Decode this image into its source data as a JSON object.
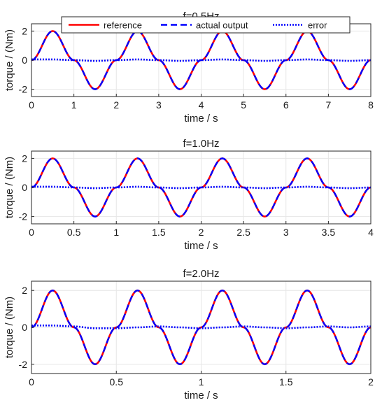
{
  "colors": {
    "reference": "#ff0000",
    "actual_output": "#0000ff",
    "error": "#0000ff",
    "grid": "#e6e6e6",
    "axes": "#262626"
  },
  "chart_data": [
    {
      "type": "line",
      "title": "f=0.5Hz",
      "xlabel": "time / s",
      "ylabel": "torque / (Nm)",
      "xlim": [
        0,
        8
      ],
      "ylim": [
        -2.5,
        2.5
      ],
      "xticks": [
        0,
        1,
        2,
        3,
        4,
        5,
        6,
        7,
        8
      ],
      "xtick_labels": [
        "0",
        "1",
        "2",
        "3",
        "4",
        "5",
        "6",
        "7",
        "8"
      ],
      "yticks": [
        2,
        0,
        -2
      ],
      "ytick_labels": [
        "2",
        "0",
        "-2"
      ],
      "grid": true,
      "legend": {
        "shown": true,
        "placement": "top",
        "orientation": "horizontal"
      },
      "series": [
        {
          "name": "reference",
          "style": "solid",
          "color": "#ff0000",
          "x": [
            0,
            0.5,
            1,
            1.5,
            2,
            2.5,
            3,
            3.5,
            4,
            4.5,
            5,
            5.5,
            6,
            6.5,
            7,
            7.5,
            8
          ],
          "y": [
            0,
            2,
            0,
            -2,
            0,
            2,
            0,
            -2,
            0,
            2,
            0,
            -2,
            0,
            2,
            0,
            -2,
            0
          ]
        },
        {
          "name": "actual output",
          "style": "dashed",
          "color": "#0000ff",
          "x": [
            0,
            0.5,
            1,
            1.5,
            2,
            2.5,
            3,
            3.5,
            4,
            4.5,
            5,
            5.5,
            6,
            6.5,
            7,
            7.5,
            8
          ],
          "y": [
            0,
            2,
            0,
            -2,
            0,
            2,
            0,
            -2,
            0,
            2,
            0,
            -2,
            0,
            2,
            0,
            -2,
            0
          ]
        },
        {
          "name": "error",
          "style": "dotted",
          "color": "#0000ff",
          "x": [
            0,
            0.5,
            1,
            1.5,
            2,
            2.5,
            3,
            3.5,
            4,
            4.5,
            5,
            5.5,
            6,
            6.5,
            7,
            7.5,
            8
          ],
          "y": [
            0.05,
            0.05,
            0,
            -0.05,
            0,
            0.05,
            0,
            -0.05,
            0,
            0.05,
            0,
            -0.05,
            0,
            0.05,
            0,
            -0.05,
            0
          ]
        }
      ]
    },
    {
      "type": "line",
      "title": "f=1.0Hz",
      "xlabel": "time / s",
      "ylabel": "torque / (Nm)",
      "xlim": [
        0,
        4
      ],
      "ylim": [
        -2.5,
        2.5
      ],
      "xticks": [
        0,
        0.5,
        1,
        1.5,
        2,
        2.5,
        3,
        3.5,
        4
      ],
      "xtick_labels": [
        "0",
        "0.5",
        "1",
        "1.5",
        "2",
        "2.5",
        "3",
        "3.5",
        "4"
      ],
      "yticks": [
        2,
        0,
        -2
      ],
      "ytick_labels": [
        "2",
        "0",
        "-2"
      ],
      "grid": true,
      "series": [
        {
          "style": "solid",
          "color": "#ff0000",
          "x": [
            0,
            0.25,
            0.5,
            0.75,
            1,
            1.25,
            1.5,
            1.75,
            2,
            2.25,
            2.5,
            2.75,
            3,
            3.25,
            3.5,
            3.75,
            4
          ],
          "y": [
            0,
            2,
            0,
            -2,
            0,
            2,
            0,
            -2,
            0,
            2,
            0,
            -2,
            0,
            2,
            0,
            -2,
            0
          ]
        },
        {
          "style": "dashed",
          "color": "#0000ff",
          "x": [
            0,
            0.25,
            0.5,
            0.75,
            1,
            1.25,
            1.5,
            1.75,
            2,
            2.25,
            2.5,
            2.75,
            3,
            3.25,
            3.5,
            3.75,
            4
          ],
          "y": [
            0,
            2,
            0,
            -2,
            0,
            2,
            0,
            -2,
            0,
            2,
            0,
            -2,
            0,
            2,
            0,
            -2,
            0
          ]
        },
        {
          "style": "dotted",
          "color": "#0000ff",
          "x": [
            0,
            0.25,
            0.5,
            0.75,
            1,
            1.25,
            1.5,
            1.75,
            2,
            2.25,
            2.5,
            2.75,
            3,
            3.25,
            3.5,
            3.75,
            4
          ],
          "y": [
            0.05,
            0.05,
            0,
            -0.05,
            0,
            0.05,
            0,
            -0.05,
            0,
            0.05,
            0,
            -0.05,
            0,
            0.05,
            0,
            -0.05,
            0
          ]
        }
      ]
    },
    {
      "type": "line",
      "title": "f=2.0Hz",
      "xlabel": "time / s",
      "ylabel": "torque / (Nm)",
      "xlim": [
        0,
        2
      ],
      "ylim": [
        -2.5,
        2.5
      ],
      "xticks": [
        0,
        0.5,
        1,
        1.5,
        2
      ],
      "xtick_labels": [
        "0",
        "0.5",
        "1",
        "1.5",
        "2"
      ],
      "yticks": [
        2,
        0,
        -2
      ],
      "ytick_labels": [
        "2",
        "0",
        "-2"
      ],
      "grid": true,
      "series": [
        {
          "style": "solid",
          "color": "#ff0000",
          "x": [
            0,
            0.125,
            0.25,
            0.375,
            0.5,
            0.625,
            0.75,
            0.875,
            1,
            1.125,
            1.25,
            1.375,
            1.5,
            1.625,
            1.75,
            1.875,
            2
          ],
          "y": [
            0,
            2,
            0,
            -2,
            0,
            2,
            0,
            -2,
            0,
            2,
            0,
            -2,
            0,
            2,
            0,
            -2,
            0
          ]
        },
        {
          "style": "dashed",
          "color": "#0000ff",
          "x": [
            0,
            0.125,
            0.25,
            0.375,
            0.5,
            0.625,
            0.75,
            0.875,
            1,
            1.125,
            1.25,
            1.375,
            1.5,
            1.625,
            1.75,
            1.875,
            2
          ],
          "y": [
            0,
            2,
            0,
            -2,
            0,
            2,
            0,
            -2,
            0,
            2,
            0,
            -2,
            0,
            2,
            0,
            -2,
            0
          ]
        },
        {
          "style": "dotted",
          "color": "#0000ff",
          "x": [
            0,
            0.125,
            0.25,
            0.375,
            0.5,
            0.625,
            0.75,
            0.875,
            1,
            1.125,
            1.25,
            1.375,
            1.5,
            1.625,
            1.75,
            1.875,
            2
          ],
          "y": [
            0.1,
            0.1,
            0.05,
            -0.05,
            -0.05,
            0,
            0.05,
            0,
            -0.05,
            0,
            0.05,
            0,
            -0.05,
            0,
            0.05,
            0,
            0.05
          ]
        }
      ]
    }
  ]
}
